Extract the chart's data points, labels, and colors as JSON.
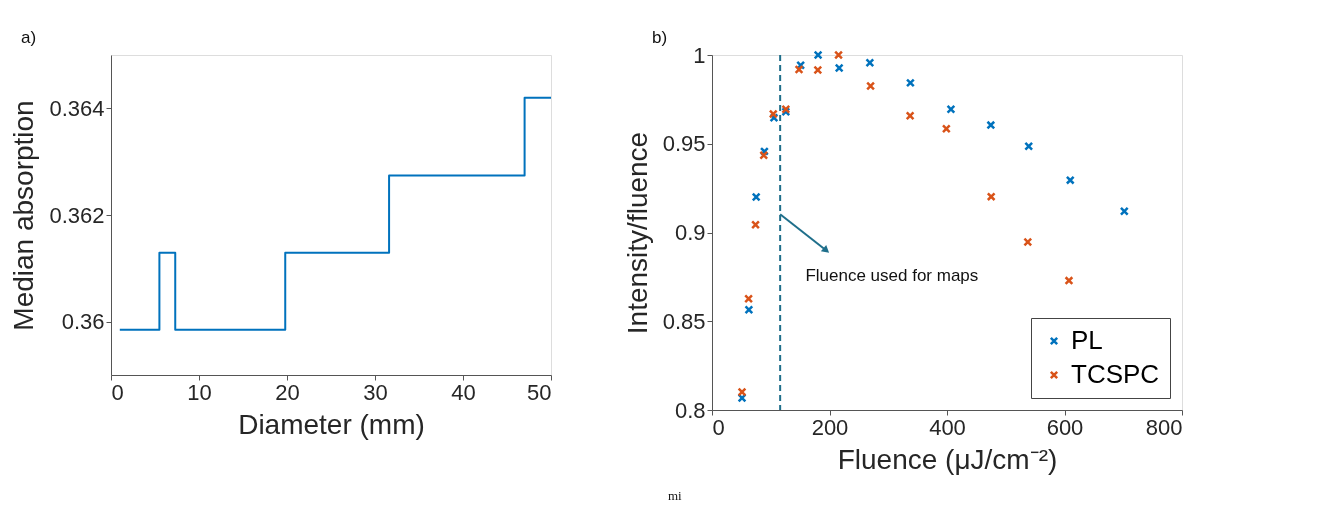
{
  "chart_data": [
    {
      "type": "step",
      "title": "a)",
      "xlabel": "Diameter (mm)",
      "ylabel": "Median absorption",
      "x": [
        1,
        5.5,
        7.3,
        19.8,
        31.6,
        47,
        50
      ],
      "series": [
        {
          "color": "#0072bd",
          "values": [
            0.35985,
            0.36129,
            0.35985,
            0.36129,
            0.36274,
            0.3642,
            0.3642
          ]
        }
      ],
      "xlim": [
        0,
        50
      ],
      "xticks": [
        0,
        10,
        20,
        30,
        40,
        50
      ],
      "ylim": [
        0.359,
        0.365
      ],
      "yticks": [
        0.36,
        0.362,
        0.364
      ],
      "grid": false,
      "legend": false,
      "marker": "none",
      "line_style": "solid"
    },
    {
      "type": "scatter",
      "title": "b)",
      "xlabel": "Fluence (μJ/cm⁻²)",
      "ylabel": "Intensity/fluence",
      "series": [
        {
          "name": "PL",
          "color": "#0072bd",
          "x": [
            51.1,
            62.8,
            75.2,
            89.2,
            105.5,
            125.7,
            150.9,
            180.6,
            216.5,
            268.7,
            337.7,
            406.7,
            474.6,
            539.1,
            609.8,
            701.8
          ],
          "values": [
            0.8068,
            0.8565,
            0.92,
            0.9457,
            0.9647,
            0.968,
            0.9942,
            1.0,
            0.9927,
            0.9956,
            0.9843,
            0.9694,
            0.9605,
            0.9486,
            0.9295,
            0.912
          ]
        },
        {
          "name": "TCSPC",
          "color": "#d95319",
          "x": [
            51.1,
            62.3,
            74.1,
            88.1,
            104.3,
            125.7,
            148.1,
            180.1,
            215.4,
            269.9,
            337.2,
            398.9,
            475.2,
            537.5,
            607.6
          ],
          "values": [
            0.8101,
            0.8627,
            0.9044,
            0.9435,
            0.9668,
            0.9694,
            0.9918,
            0.9916,
            1.0,
            0.9825,
            0.9658,
            0.9585,
            0.9202,
            0.8947,
            0.8729
          ]
        }
      ],
      "xlim": [
        0,
        800
      ],
      "xticks": [
        0,
        200,
        400,
        600,
        800
      ],
      "ylim": [
        0.8,
        1
      ],
      "yticks": [
        0.8,
        0.85,
        0.9,
        0.95,
        1
      ],
      "ref_lines": [
        {
          "axis": "x",
          "value": 116,
          "label": null,
          "color": "#1f6f8b",
          "line_style": "dashed"
        }
      ],
      "annotations": [
        {
          "text": "Fluence used for maps",
          "x": 193,
          "y": 0.8903
        },
        "mi"
      ],
      "grid": false,
      "legend": "bottom right",
      "marker": "cross"
    }
  ]
}
